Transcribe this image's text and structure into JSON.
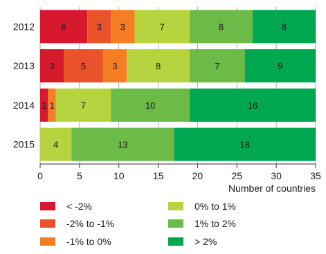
{
  "chart_data": {
    "type": "bar",
    "orientation": "horizontal",
    "stacked": true,
    "categories": [
      "2012",
      "2013",
      "2014",
      "2015"
    ],
    "series": [
      {
        "name": "< -2%",
        "color": "#d7192e",
        "values": [
          6,
          3,
          1,
          0
        ]
      },
      {
        "name": "-2% to -1%",
        "color": "#e8532b",
        "values": [
          3,
          5,
          0,
          0
        ]
      },
      {
        "name": "-1% to 0%",
        "color": "#f57e25",
        "values": [
          3,
          3,
          1,
          0
        ]
      },
      {
        "name": "0% to 1%",
        "color": "#b7d340",
        "values": [
          7,
          8,
          7,
          4
        ]
      },
      {
        "name": "1% to 2%",
        "color": "#6cba47",
        "values": [
          8,
          7,
          10,
          13
        ]
      },
      {
        "name": "> 2%",
        "color": "#00a650",
        "values": [
          8,
          9,
          16,
          18
        ]
      }
    ],
    "xlabel": "Number of countries",
    "xlim": [
      0,
      35
    ],
    "xticks": [
      0,
      5,
      10,
      15,
      20,
      25,
      30,
      35
    ],
    "grid": true,
    "legend_position": "bottom"
  }
}
